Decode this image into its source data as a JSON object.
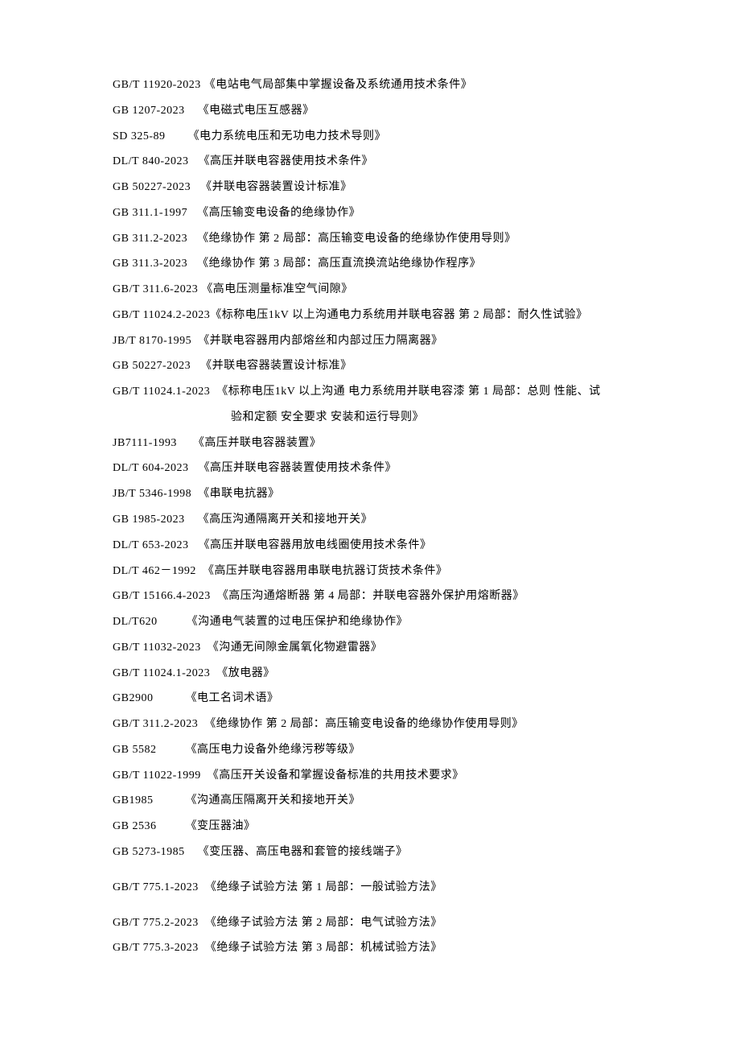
{
  "entries": [
    {
      "code": "GB/T 11920-2023 ",
      "title": "《电站电气局部集中掌握设备及系统通用技术条件》"
    },
    {
      "code": "GB 1207-2023    ",
      "title": "《电磁式电压互感器》"
    },
    {
      "code": "SD 325-89       ",
      "title": "《电力系统电压和无功电力技术导则》"
    },
    {
      "code": "DL/T 840-2023   ",
      "title": "《高压并联电容器使用技术条件》"
    },
    {
      "code": "GB 50227-2023   ",
      "title": "《并联电容器装置设计标准》"
    },
    {
      "code": "GB 311.1-1997   ",
      "title": "《高压输变电设备的绝缘协作》"
    },
    {
      "code": "GB 311.2-2023   ",
      "title": "《绝缘协作 第 2 局部：高压输变电设备的绝缘协作使用导则》"
    },
    {
      "code": "GB 311.3-2023   ",
      "title": "《绝缘协作 第 3 局部：高压直流换流站绝缘协作程序》"
    },
    {
      "code": "GB/T 311.6-2023 ",
      "title": "《高电压测量标准空气间隙》"
    },
    {
      "code": "GB/T 11024.2-2023",
      "title": "《标称电压1kV 以上沟通电力系统用并联电容器 第 2 局部：耐久性试验》"
    },
    {
      "code": "JB/T 8170-1995  ",
      "title": "《并联电容器用内部熔丝和内部过压力隔离器》"
    },
    {
      "code": "GB 50227-2023   ",
      "title": "《并联电容器装置设计标准》"
    },
    {
      "code": "GB/T 11024.1-2023  ",
      "title": "《标称电压1kV 以上沟通 电力系统用并联电容漆 第 1 局部：总则 性能、试",
      "continuation": "验和定额 安全要求 安装和运行导则》"
    },
    {
      "code": "JB7111-1993     ",
      "title": "《高压并联电容器装置》"
    },
    {
      "code": "DL/T 604-2023   ",
      "title": "《高压并联电容器装置使用技术条件》"
    },
    {
      "code": "JB/T 5346-1998  ",
      "title": "《串联电抗器》"
    },
    {
      "code": "GB 1985-2023    ",
      "title": "《高压沟通隔离开关和接地开关》"
    },
    {
      "code": "DL/T 653-2023   ",
      "title": "《高压并联电容器用放电线圈使用技术条件》"
    },
    {
      "code": "DL/T 462－1992  ",
      "title": "《高压并联电容器用串联电抗器订货技术条件》"
    },
    {
      "code": "GB/T 15166.4-2023  ",
      "title": "《高压沟通熔断器 第 4 局部：并联电容器外保护用熔断器》"
    },
    {
      "code": "DL/T620         ",
      "title": "《沟通电气装置的过电压保护和绝缘协作》"
    },
    {
      "code": "GB/T 11032-2023  ",
      "title": "《沟通无间隙金属氧化物避雷器》"
    },
    {
      "code": "GB/T 11024.1-2023  ",
      "title": "《放电器》"
    },
    {
      "code": "GB2900          ",
      "title": "《电工名词术语》"
    },
    {
      "code": "GB/T 311.2-2023  ",
      "title": "《绝缘协作 第 2 局部：高压输变电设备的绝缘协作使用导则》"
    },
    {
      "code": "GB 5582         ",
      "title": "《高压电力设备外绝缘污秽等级》"
    },
    {
      "code": "GB/T 11022-1999  ",
      "title": "《高压开关设备和掌握设备标准的共用技术要求》"
    },
    {
      "code": "GB1985          ",
      "title": "《沟通高压隔离开关和接地开关》"
    },
    {
      "code": "GB 2536         ",
      "title": "《变压器油》"
    },
    {
      "code": "GB 5273-1985    ",
      "title": "《变压器、高压电器和套管的接线端子》"
    },
    {
      "gap": true
    },
    {
      "code": "GB/T 775.1-2023  ",
      "title": "《绝缘子试验方法 第 1 局部：一般试验方法》"
    },
    {
      "gap": true
    },
    {
      "code": "GB/T 775.2-2023  ",
      "title": "《绝缘子试验方法 第 2 局部：电气试验方法》"
    },
    {
      "code": "GB/T 775.3-2023  ",
      "title": "《绝缘子试验方法 第 3 局部：机械试验方法》"
    }
  ]
}
